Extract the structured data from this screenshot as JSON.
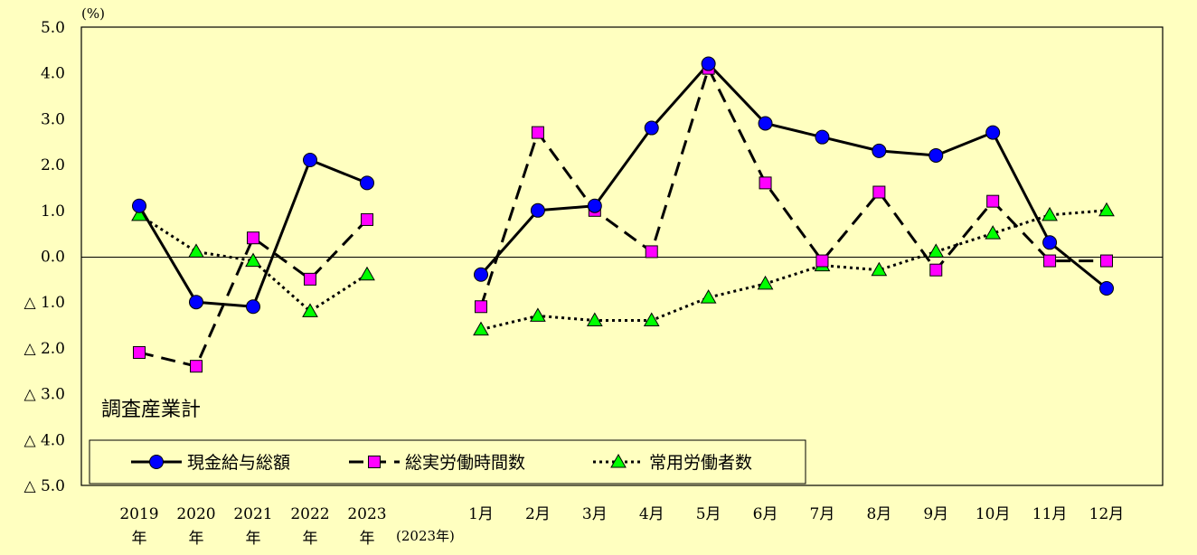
{
  "chart_data": {
    "type": "line",
    "unit_label": "(%)",
    "panel_title": "調査産業計",
    "ylim": [
      -5.0,
      5.0
    ],
    "y_ticks": [
      {
        "v": 5.0,
        "label": "5.0"
      },
      {
        "v": 4.0,
        "label": "4.0"
      },
      {
        "v": 3.0,
        "label": "3.0"
      },
      {
        "v": 2.0,
        "label": "2.0"
      },
      {
        "v": 1.0,
        "label": "1.0"
      },
      {
        "v": 0.0,
        "label": "0.0"
      },
      {
        "v": -1.0,
        "label": "△ 1.0"
      },
      {
        "v": -2.0,
        "label": "△ 2.0"
      },
      {
        "v": -3.0,
        "label": "△ 3.0"
      },
      {
        "v": -4.0,
        "label": "△ 4.0"
      },
      {
        "v": -5.0,
        "label": "△ 5.0"
      }
    ],
    "annual_categories": [
      {
        "year": "2019",
        "suffix": "年"
      },
      {
        "year": "2020",
        "suffix": "年"
      },
      {
        "year": "2021",
        "suffix": "年"
      },
      {
        "year": "2022",
        "suffix": "年"
      },
      {
        "year": "2023",
        "suffix": "年"
      }
    ],
    "monthly_group_label": "(2023年)",
    "monthly_categories": [
      "1月",
      "2月",
      "3月",
      "4月",
      "5月",
      "6月",
      "7月",
      "8月",
      "9月",
      "10月",
      "11月",
      "12月"
    ],
    "series": [
      {
        "name": "現金給与総額",
        "color": "#0000FF",
        "marker": "circle",
        "line_style": "solid",
        "annual": [
          1.1,
          -1.0,
          -1.1,
          2.1,
          1.6
        ],
        "monthly": [
          -0.4,
          1.0,
          1.1,
          2.8,
          4.2,
          2.9,
          2.6,
          2.3,
          2.2,
          2.7,
          0.3,
          -0.7
        ]
      },
      {
        "name": "総実労働時間数",
        "color": "#FF00FF",
        "marker": "square",
        "line_style": "dashed",
        "annual": [
          -2.1,
          -2.4,
          0.4,
          -0.5,
          0.8
        ],
        "monthly": [
          -1.1,
          2.7,
          1.0,
          0.1,
          4.1,
          1.6,
          -0.1,
          1.4,
          -0.3,
          1.2,
          -0.1,
          -0.1
        ]
      },
      {
        "name": "常用労働者数",
        "color": "#00FF00",
        "marker": "triangle",
        "line_style": "dotted",
        "annual": [
          0.9,
          0.1,
          -0.1,
          -1.2,
          -0.4
        ],
        "monthly": [
          -1.6,
          -1.3,
          -1.4,
          -1.4,
          -0.9,
          -0.6,
          -0.2,
          -0.3,
          0.1,
          0.5,
          0.9,
          1.0
        ]
      }
    ]
  }
}
